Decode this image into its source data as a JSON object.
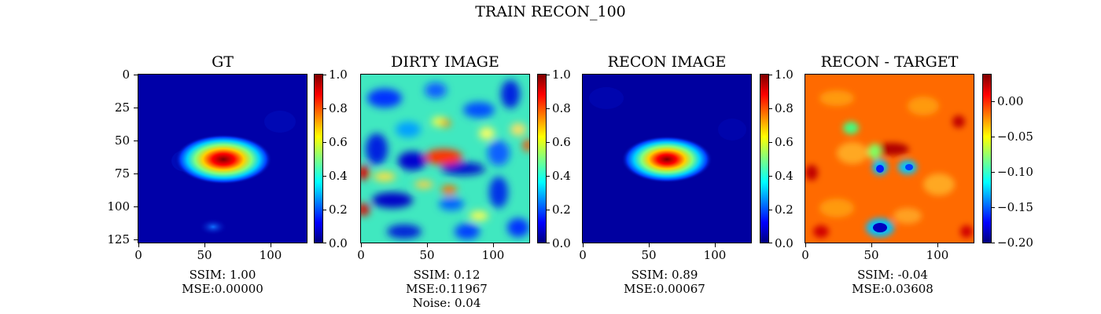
{
  "figure": {
    "suptitle": "TRAIN RECON_100"
  },
  "panels": [
    {
      "title": "GT",
      "caption_lines": [
        "SSIM: 1.00",
        "MSE:0.00000"
      ]
    },
    {
      "title": "DIRTY IMAGE",
      "caption_lines": [
        "SSIM: 0.12",
        "MSE:0.11967",
        "Noise: 0.04"
      ]
    },
    {
      "title": "RECON IMAGE",
      "caption_lines": [
        "SSIM: 0.89",
        "MSE:0.00067"
      ]
    },
    {
      "title": "RECON - TARGET",
      "caption_lines": [
        "SSIM: -0.04",
        "MSE:0.03608"
      ]
    }
  ],
  "chart_data": [
    {
      "type": "heatmap",
      "title": "GT",
      "colormap": "jet",
      "x_ticks": [
        "0",
        "50",
        "100"
      ],
      "y_ticks": [
        "0",
        "25",
        "50",
        "75",
        "100",
        "125"
      ],
      "xlim": [
        0,
        127
      ],
      "ylim": [
        127,
        0
      ],
      "colorbar": {
        "range": [
          0.0,
          1.0
        ],
        "ticks": [
          "0.0",
          "0.2",
          "0.4",
          "0.6",
          "0.8",
          "1.0"
        ]
      },
      "metrics": {
        "SSIM": 1.0,
        "MSE": 0.0
      }
    },
    {
      "type": "heatmap",
      "title": "DIRTY IMAGE",
      "colormap": "jet",
      "x_ticks": [
        "0",
        "50",
        "100"
      ],
      "xlim": [
        0,
        127
      ],
      "ylim": [
        127,
        0
      ],
      "colorbar": {
        "range": [
          0.0,
          1.0
        ],
        "ticks": [
          "0.0",
          "0.2",
          "0.4",
          "0.6",
          "0.8",
          "1.0"
        ]
      },
      "metrics": {
        "SSIM": 0.12,
        "MSE": 0.11967,
        "Noise": 0.04
      }
    },
    {
      "type": "heatmap",
      "title": "RECON IMAGE",
      "colormap": "jet",
      "x_ticks": [
        "0",
        "50",
        "100"
      ],
      "xlim": [
        0,
        127
      ],
      "ylim": [
        127,
        0
      ],
      "colorbar": {
        "range": [
          0.0,
          1.0
        ],
        "ticks": [
          "0.0",
          "0.2",
          "0.4",
          "0.6",
          "0.8",
          "1.0"
        ]
      },
      "metrics": {
        "SSIM": 0.89,
        "MSE": 0.00067
      }
    },
    {
      "type": "heatmap",
      "title": "RECON - TARGET",
      "colormap": "jet",
      "x_ticks": [
        "0",
        "50",
        "100"
      ],
      "xlim": [
        0,
        127
      ],
      "ylim": [
        127,
        0
      ],
      "colorbar": {
        "range": [
          -0.2,
          0.04
        ],
        "ticks": [
          "0.00",
          "−0.05",
          "−0.10",
          "−0.15",
          "−0.20"
        ]
      },
      "metrics": {
        "SSIM": -0.04,
        "MSE": 0.03608
      }
    }
  ]
}
